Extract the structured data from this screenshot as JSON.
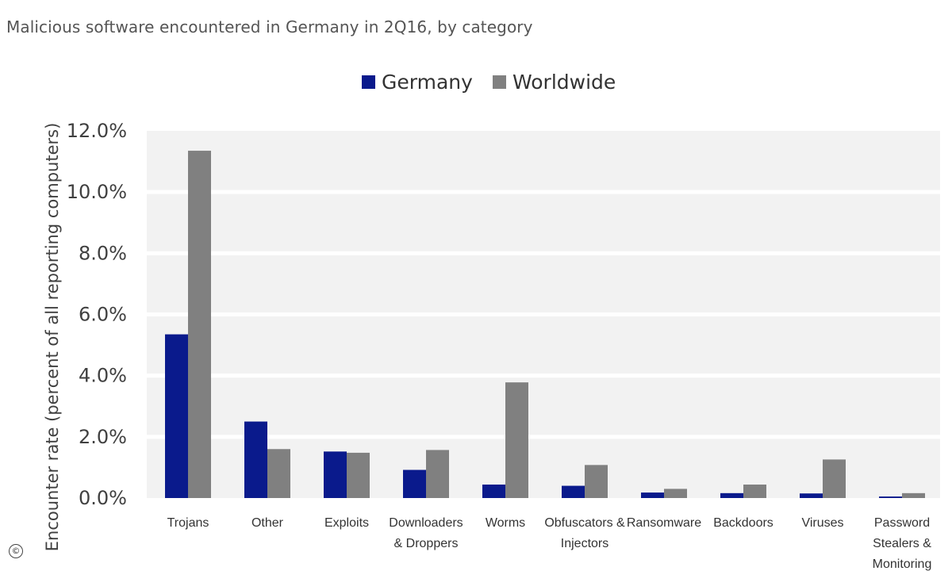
{
  "subtitle": "Malicious software encountered in Germany in 2Q16, by category",
  "copyright_symbol": "©",
  "chart_data": {
    "type": "bar",
    "title": "",
    "subtitle": "Malicious software encountered in Germany in 2Q16, by category",
    "xlabel": "",
    "ylabel": "Encounter rate (percent of all reporting computers)",
    "ylim": [
      0,
      12
    ],
    "yticks": [
      "0.0%",
      "2.0%",
      "4.0%",
      "6.0%",
      "8.0%",
      "10.0%",
      "12.0%"
    ],
    "legend_position": "top-center",
    "grid": true,
    "categories": [
      [
        "Trojans"
      ],
      [
        "Other"
      ],
      [
        "Exploits"
      ],
      [
        "Downloaders",
        "& Droppers"
      ],
      [
        "Worms"
      ],
      [
        "Obfuscators &",
        "Injectors"
      ],
      [
        "Ransomware"
      ],
      [
        "Backdoors"
      ],
      [
        "Viruses"
      ],
      [
        "Password",
        "Stealers &",
        "Monitoring"
      ]
    ],
    "series": [
      {
        "name": "Germany",
        "color": "#0a1a8c",
        "values": [
          5.35,
          2.5,
          1.52,
          0.92,
          0.44,
          0.4,
          0.18,
          0.16,
          0.15,
          0.05
        ]
      },
      {
        "name": "Worldwide",
        "color": "#808080",
        "values": [
          11.35,
          1.6,
          1.48,
          1.57,
          3.78,
          1.08,
          0.3,
          0.44,
          1.26,
          0.16
        ]
      }
    ]
  }
}
